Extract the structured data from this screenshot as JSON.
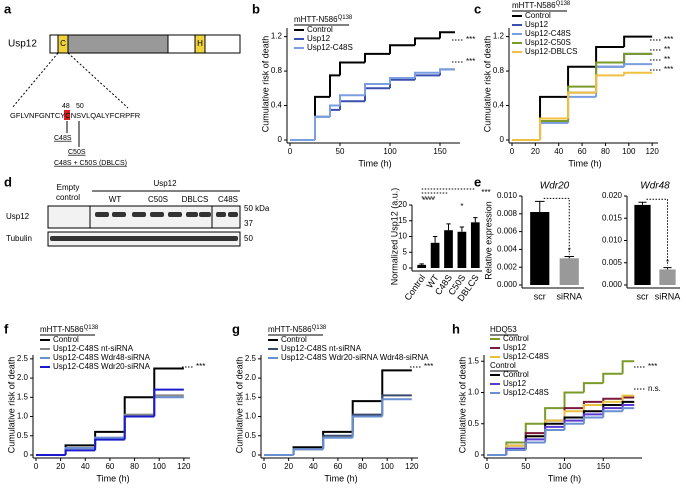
{
  "diagram": {
    "panel": "a",
    "protein": "Usp12",
    "box_c": "C",
    "box_h": "H",
    "seq_pre": "GFLVNFGNT",
    "seq_c": "C",
    "seq_post": "YCNSVLQALYFCRPFR",
    "pos1": "48",
    "pos2": "50",
    "mut1": "C48S",
    "mut2": "C50S",
    "mut3": "C48S + C50S (DBLCS)"
  },
  "blot": {
    "panel": "d",
    "empty": "Empty",
    "empty2": "control",
    "group": "Usp12",
    "lanes": [
      "WT",
      "C50S",
      "DBLCS",
      "C48S"
    ],
    "row1": "Usp12",
    "row2": "Tubulin",
    "m1": "50 kDa",
    "m2": "37",
    "m3": "50"
  },
  "chart_data": [
    {
      "type": "step",
      "panel": "b",
      "construct": "mHTT-N586",
      "construct_sup": "Q138",
      "xlabel": "Time (h)",
      "ylabel": "Cumulative risk of death",
      "x": [
        0,
        25,
        40,
        50,
        75,
        100,
        125,
        150,
        165
      ],
      "xlim": [
        0,
        170
      ],
      "xticks": [
        0,
        50,
        100,
        150
      ],
      "ylim": [
        0,
        1.3
      ],
      "yticks": [
        0,
        0.4,
        0.8,
        1.2
      ],
      "series": [
        {
          "name": "Control",
          "color": "#000000",
          "values": [
            0,
            0.5,
            0.75,
            0.9,
            1.0,
            1.1,
            1.18,
            1.25,
            1.25
          ]
        },
        {
          "name": "Usp12",
          "color": "#3a50b0",
          "values": [
            0,
            0.27,
            0.35,
            0.45,
            0.6,
            0.7,
            0.75,
            0.82,
            0.82
          ]
        },
        {
          "name": "Usp12-C48S",
          "color": "#7a9ee0",
          "values": [
            0,
            0.27,
            0.4,
            0.52,
            0.65,
            0.72,
            0.78,
            0.82,
            0.82
          ]
        }
      ],
      "annotations": [
        "***",
        "***"
      ]
    },
    {
      "type": "step",
      "panel": "c",
      "construct": "mHTT-N586",
      "construct_sup": "Q138",
      "xlabel": "Time (h)",
      "ylabel": "Cumulative risk of death",
      "x": [
        0,
        24,
        48,
        72,
        96,
        120
      ],
      "xlim": [
        0,
        125
      ],
      "xticks": [
        0,
        20,
        40,
        60,
        80,
        100,
        120
      ],
      "ylim": [
        0,
        1.3
      ],
      "yticks": [
        0,
        0.4,
        0.8,
        1.2
      ],
      "series": [
        {
          "name": "Control",
          "color": "#000000",
          "values": [
            0,
            0.5,
            0.85,
            1.08,
            1.2,
            1.2
          ]
        },
        {
          "name": "Usp12",
          "color": "#3a50b0",
          "values": [
            0,
            0.2,
            0.55,
            0.85,
            1.0,
            1.0
          ]
        },
        {
          "name": "Usp12-C48S",
          "color": "#7a9ee0",
          "values": [
            0,
            0.2,
            0.5,
            0.85,
            0.88,
            0.88
          ]
        },
        {
          "name": "Usp12-C50S",
          "color": "#7a9a2a",
          "values": [
            0,
            0.22,
            0.62,
            0.9,
            1.0,
            1.0
          ]
        },
        {
          "name": "Usp12-DBLCS",
          "color": "#f0c040",
          "values": [
            0,
            0.25,
            0.55,
            0.75,
            0.78,
            0.78
          ]
        }
      ],
      "annotations": [
        "***",
        "**",
        "**",
        "***"
      ]
    },
    {
      "type": "bar",
      "ylabel": "Normalized Usp12 (a.u.)",
      "categories": [
        "Control",
        "WT",
        "C48S",
        "C50S",
        "DBLCS"
      ],
      "values": [
        1,
        8,
        12,
        11.5,
        14.5
      ],
      "errors": [
        0.3,
        2,
        2,
        1.5,
        1.5
      ],
      "colors": [
        "#000000",
        "#000000",
        "#000000",
        "#000000",
        "#000000"
      ],
      "ylim": [
        0,
        20
      ],
      "yticks": [
        0,
        5,
        10,
        15,
        20
      ],
      "annotations": [
        "****",
        "*",
        "***"
      ]
    },
    {
      "type": "bar",
      "panel": "e",
      "title": "Wdr20",
      "ylabel": "Relative expression",
      "categories": [
        "scr",
        "siRNA"
      ],
      "values": [
        0.0082,
        0.003
      ],
      "errors": [
        0.0012,
        0.0002
      ],
      "colors": [
        "#000000",
        "#999999"
      ],
      "ylim": [
        0,
        0.01
      ],
      "yticks": [
        {
          "value": 0,
          "label": "0.000"
        },
        {
          "value": 0.002,
          "label": "0.002"
        },
        {
          "value": 0.004,
          "label": "0.004"
        },
        {
          "value": 0.006,
          "label": "0.006"
        },
        {
          "value": 0.008,
          "label": "0.008"
        },
        {
          "value": 0.01,
          "label": "0.010"
        }
      ],
      "annotations": [
        "*"
      ]
    },
    {
      "type": "bar",
      "title": "Wdr48",
      "categories": [
        "scr",
        "siRNA"
      ],
      "values": [
        0.018,
        0.0035
      ],
      "errors": [
        0.0006,
        0.0004
      ],
      "colors": [
        "#000000",
        "#999999"
      ],
      "ylim": [
        0,
        0.02
      ],
      "yticks": [
        {
          "value": 0,
          "label": "0.000"
        },
        {
          "value": 0.005,
          "label": "0.005"
        },
        {
          "value": 0.01,
          "label": "0.010"
        },
        {
          "value": 0.015,
          "label": "0.015"
        },
        {
          "value": 0.02,
          "label": "0.020"
        }
      ],
      "annotations": [
        "*"
      ]
    },
    {
      "type": "step",
      "panel": "f",
      "construct": "mHTT-N586",
      "construct_sup": "Q138",
      "xlabel": "Time (h)",
      "ylabel": "Cumulative risk of death",
      "x": [
        0,
        24,
        48,
        72,
        96,
        120
      ],
      "xlim": [
        0,
        125
      ],
      "xticks": [
        0,
        20,
        40,
        60,
        80,
        100,
        120
      ],
      "ylim": [
        0,
        2.6
      ],
      "yticks": [
        0,
        0.5,
        {
          "value": 1,
          "label": "1.0"
        },
        1.5,
        {
          "value": 2,
          "label": "2.0"
        },
        2.5
      ],
      "series": [
        {
          "name": "Control",
          "color": "#000000",
          "values": [
            0,
            0.25,
            0.6,
            1.5,
            2.25,
            2.25
          ]
        },
        {
          "name": "Usp12-C48S nt-siRNA",
          "color": "#888888",
          "values": [
            0,
            0.18,
            0.45,
            1.05,
            1.55,
            1.55
          ]
        },
        {
          "name": "Usp12-C48S Wdr48-siRNA",
          "color": "#6a8fd0",
          "values": [
            0,
            0.18,
            0.45,
            1.0,
            1.5,
            1.5
          ]
        },
        {
          "name": "Usp12-C48S Wdr20-siRNA",
          "color": "#1a1acc",
          "values": [
            0,
            0.12,
            0.4,
            1.0,
            1.7,
            1.7
          ]
        }
      ],
      "annotations": [
        "***"
      ]
    },
    {
      "type": "step",
      "panel": "g",
      "construct": "mHTT-N586",
      "construct_sup": "Q138",
      "xlabel": "Time (h)",
      "ylabel": "Cumulative risk of death",
      "x": [
        0,
        24,
        48,
        72,
        96,
        120
      ],
      "xlim": [
        0,
        125
      ],
      "xticks": [
        0,
        20,
        40,
        60,
        80,
        100,
        120
      ],
      "ylim": [
        0,
        2.6
      ],
      "yticks": [
        0,
        0.5,
        {
          "value": 1,
          "label": "1.0"
        },
        1.5,
        {
          "value": 2,
          "label": "2.0"
        },
        2.5
      ],
      "series": [
        {
          "name": "Control",
          "color": "#000000",
          "values": [
            0,
            0.2,
            0.6,
            1.4,
            2.2,
            2.2
          ]
        },
        {
          "name": "Usp12-C48S nt-siRNA",
          "color": "#3a4a6a",
          "values": [
            0,
            0.15,
            0.5,
            1.05,
            1.55,
            1.55
          ]
        },
        {
          "name": "Usp12-C48S Wdr20-siRNA Wdr48-siRNA",
          "color": "#6a8fd0",
          "values": [
            0,
            0.15,
            0.45,
            1.0,
            1.45,
            1.45
          ]
        }
      ],
      "annotations": [
        "***"
      ]
    },
    {
      "type": "step",
      "panel": "h",
      "xlabel": "Time (h)",
      "ylabel": "Cumulative risk of death",
      "x": [
        0,
        25,
        50,
        75,
        100,
        125,
        150,
        175,
        190
      ],
      "xlim": [
        0,
        200
      ],
      "xticks": [
        0,
        50,
        100,
        150
      ],
      "ylim": [
        0,
        1.6
      ],
      "yticks": [
        0,
        0.5,
        {
          "value": 1,
          "label": "1.0"
        },
        1.5
      ],
      "legend_titles": [
        "HDQ53",
        "Control"
      ],
      "series": [
        {
          "name": "Control",
          "color": "#7a9a2a",
          "values": [
            0,
            0.2,
            0.5,
            0.75,
            1.0,
            1.15,
            1.3,
            1.5,
            1.5
          ]
        },
        {
          "name": "Usp12",
          "color": "#7a1a3a",
          "values": [
            0,
            0.15,
            0.35,
            0.55,
            0.75,
            0.85,
            0.9,
            0.92,
            0.92
          ]
        },
        {
          "name": "Usp12-C48S",
          "color": "#e8c040",
          "values": [
            0,
            0.15,
            0.3,
            0.55,
            0.7,
            0.8,
            0.85,
            0.95,
            0.95
          ]
        },
        {
          "name": "Control",
          "color": "#000000",
          "values": [
            0,
            0.1,
            0.3,
            0.5,
            0.6,
            0.7,
            0.8,
            0.85,
            0.85
          ]
        },
        {
          "name": "Usp12",
          "color": "#5a3ad0",
          "values": [
            0,
            0.1,
            0.25,
            0.45,
            0.55,
            0.65,
            0.75,
            0.8,
            0.8
          ]
        },
        {
          "name": "Usp12-C48S",
          "color": "#6a8fd0",
          "values": [
            0,
            0.08,
            0.2,
            0.4,
            0.5,
            0.6,
            0.7,
            0.75,
            0.75
          ]
        }
      ],
      "annotations": [
        "***",
        "n.s."
      ]
    }
  ]
}
